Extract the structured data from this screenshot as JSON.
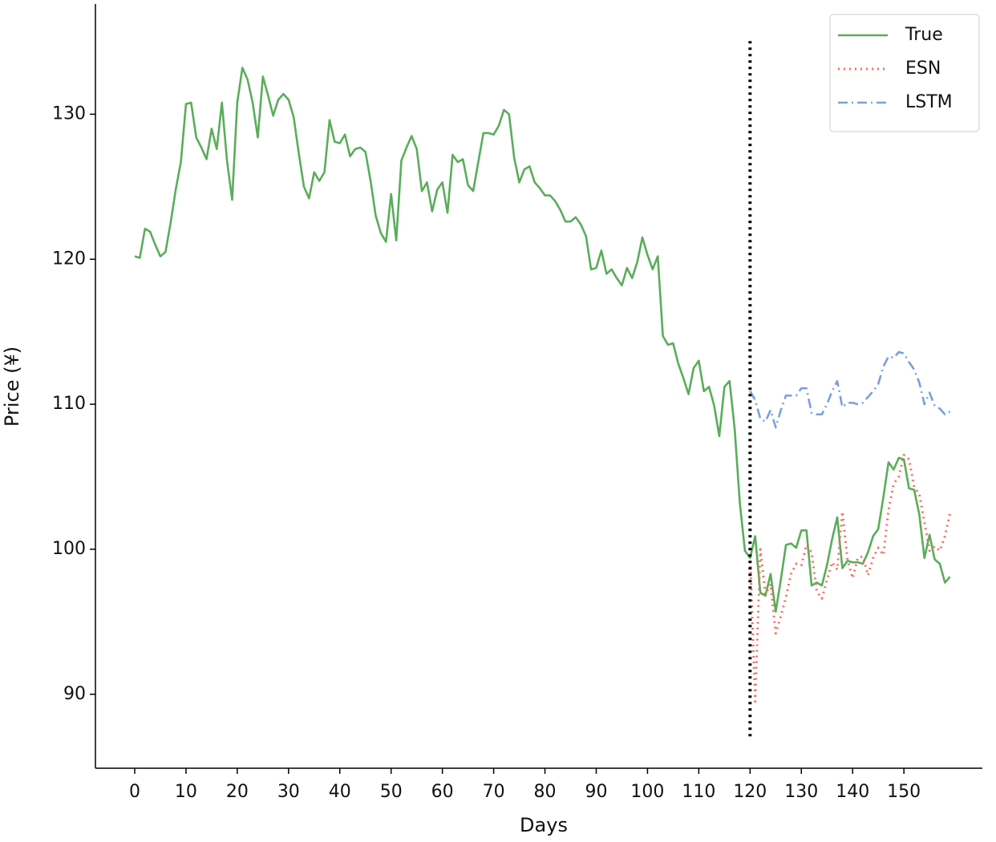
{
  "chart_data": {
    "type": "line",
    "x_label": "Days",
    "y_label": "Price (¥)",
    "x": [
      0,
      1,
      2,
      3,
      4,
      5,
      6,
      7,
      8,
      9,
      10,
      11,
      12,
      13,
      14,
      15,
      16,
      17,
      18,
      19,
      20,
      21,
      22,
      23,
      24,
      25,
      26,
      27,
      28,
      29,
      30,
      31,
      32,
      33,
      34,
      35,
      36,
      37,
      38,
      39,
      40,
      41,
      42,
      43,
      44,
      45,
      46,
      47,
      48,
      49,
      50,
      51,
      52,
      53,
      54,
      55,
      56,
      57,
      58,
      59,
      60,
      61,
      62,
      63,
      64,
      65,
      66,
      67,
      68,
      69,
      70,
      71,
      72,
      73,
      74,
      75,
      76,
      77,
      78,
      79,
      80,
      81,
      82,
      83,
      84,
      85,
      86,
      87,
      88,
      89,
      90,
      91,
      92,
      93,
      94,
      95,
      96,
      97,
      98,
      99,
      100,
      101,
      102,
      103,
      104,
      105,
      106,
      107,
      108,
      109,
      110,
      111,
      112,
      113,
      114,
      115,
      116,
      117,
      118,
      119,
      120,
      121,
      122,
      123,
      124,
      125,
      126,
      127,
      128,
      129,
      130,
      131,
      132,
      133,
      134,
      135,
      136,
      137,
      138,
      139,
      140,
      141,
      142,
      143,
      144,
      145,
      146,
      147,
      148,
      149,
      150,
      151,
      152,
      153,
      154,
      155,
      156,
      157,
      158,
      159
    ],
    "series": [
      {
        "name": "True",
        "color": "#5aad5a",
        "style": "solid",
        "values": [
          120.2,
          120.1,
          122.1,
          121.9,
          121.0,
          120.2,
          120.5,
          122.5,
          124.8,
          126.7,
          130.7,
          130.8,
          128.4,
          127.7,
          126.9,
          129.0,
          127.6,
          130.8,
          126.8,
          124.1,
          130.8,
          133.2,
          132.4,
          130.8,
          128.4,
          132.6,
          131.3,
          129.9,
          131.0,
          131.4,
          131.0,
          129.8,
          127.3,
          125.0,
          124.2,
          126.0,
          125.4,
          126.0,
          129.6,
          128.1,
          128.0,
          128.6,
          127.1,
          127.6,
          127.7,
          127.4,
          125.4,
          123.0,
          121.8,
          121.2,
          124.5,
          121.3,
          126.8,
          127.7,
          128.5,
          127.6,
          124.7,
          125.3,
          123.3,
          124.8,
          125.3,
          123.2,
          127.2,
          126.7,
          126.9,
          125.1,
          124.7,
          126.7,
          128.7,
          128.7,
          128.6,
          129.2,
          130.3,
          130.0,
          127.0,
          125.3,
          126.2,
          126.4,
          125.3,
          124.9,
          124.4,
          124.4,
          124.0,
          123.4,
          122.6,
          122.6,
          122.9,
          122.4,
          121.6,
          119.3,
          119.4,
          120.6,
          119.0,
          119.3,
          118.7,
          118.2,
          119.4,
          118.7,
          119.8,
          121.5,
          120.3,
          119.3,
          120.2,
          114.7,
          114.1,
          114.2,
          112.8,
          111.8,
          110.7,
          112.5,
          113.0,
          110.9,
          111.2,
          109.9,
          107.8,
          111.2,
          111.6,
          108.3,
          103.2,
          99.9,
          99.4,
          100.9,
          97.0,
          96.8,
          98.3,
          95.7,
          97.9,
          100.3,
          100.4,
          100.1,
          101.3,
          101.3,
          97.5,
          97.7,
          97.5,
          98.9,
          100.7,
          102.2,
          98.7,
          99.2,
          99.1,
          99.1,
          99.0,
          99.8,
          100.9,
          101.4,
          103.6,
          106.0,
          105.5,
          106.3,
          106.2,
          104.2,
          104.1,
          102.4,
          99.4,
          101.0,
          99.3,
          99.0,
          97.7,
          98.1
        ]
      },
      {
        "name": "ESN",
        "color": "#f07060",
        "style": "dotted",
        "values": [
          null,
          null,
          null,
          null,
          null,
          null,
          null,
          null,
          null,
          null,
          null,
          null,
          null,
          null,
          null,
          null,
          null,
          null,
          null,
          null,
          null,
          null,
          null,
          null,
          null,
          null,
          null,
          null,
          null,
          null,
          null,
          null,
          null,
          null,
          null,
          null,
          null,
          null,
          null,
          null,
          null,
          null,
          null,
          null,
          null,
          null,
          null,
          null,
          null,
          null,
          null,
          null,
          null,
          null,
          null,
          null,
          null,
          null,
          null,
          null,
          null,
          null,
          null,
          null,
          null,
          null,
          null,
          null,
          null,
          null,
          null,
          null,
          null,
          null,
          null,
          null,
          null,
          null,
          null,
          null,
          null,
          null,
          null,
          null,
          null,
          null,
          null,
          null,
          null,
          null,
          null,
          null,
          null,
          null,
          null,
          null,
          null,
          null,
          null,
          null,
          null,
          null,
          null,
          null,
          null,
          null,
          null,
          null,
          null,
          null,
          null,
          null,
          null,
          null,
          null,
          null,
          null,
          null,
          null,
          null,
          99.6,
          89.5,
          100.0,
          96.9,
          97.6,
          94.2,
          95.4,
          96.7,
          98.3,
          99.0,
          98.9,
          100.3,
          99.8,
          97.1,
          96.6,
          97.9,
          99.1,
          98.6,
          102.6,
          99.3,
          98.0,
          99.4,
          99.5,
          98.2,
          99.4,
          100.1,
          99.6,
          102.7,
          104.5,
          105.0,
          106.5,
          106.2,
          104.3,
          103.8,
          101.9,
          99.9,
          100.2,
          99.9,
          100.9,
          102.5
        ]
      },
      {
        "name": "LSTM",
        "color": "#7b9fdc",
        "style": "dashdot",
        "values": [
          null,
          null,
          null,
          null,
          null,
          null,
          null,
          null,
          null,
          null,
          null,
          null,
          null,
          null,
          null,
          null,
          null,
          null,
          null,
          null,
          null,
          null,
          null,
          null,
          null,
          null,
          null,
          null,
          null,
          null,
          null,
          null,
          null,
          null,
          null,
          null,
          null,
          null,
          null,
          null,
          null,
          null,
          null,
          null,
          null,
          null,
          null,
          null,
          null,
          null,
          null,
          null,
          null,
          null,
          null,
          null,
          null,
          null,
          null,
          null,
          null,
          null,
          null,
          null,
          null,
          null,
          null,
          null,
          null,
          null,
          null,
          null,
          null,
          null,
          null,
          null,
          null,
          null,
          null,
          null,
          null,
          null,
          null,
          null,
          null,
          null,
          null,
          null,
          null,
          null,
          null,
          null,
          null,
          null,
          null,
          null,
          null,
          null,
          null,
          null,
          null,
          null,
          null,
          null,
          null,
          null,
          null,
          null,
          null,
          null,
          null,
          null,
          null,
          null,
          null,
          null,
          null,
          null,
          null,
          null,
          110.9,
          110.3,
          109.0,
          108.8,
          109.6,
          108.4,
          109.6,
          110.6,
          110.6,
          110.6,
          111.1,
          111.1,
          109.4,
          109.3,
          109.3,
          110.0,
          110.9,
          111.6,
          109.8,
          110.1,
          110.1,
          110.0,
          110.1,
          110.5,
          110.9,
          111.4,
          112.6,
          113.3,
          113.2,
          113.6,
          113.5,
          112.9,
          112.4,
          111.5,
          110.0,
          110.8,
          109.9,
          109.7,
          109.3,
          109.5
        ]
      }
    ],
    "vline": {
      "x": 120,
      "ymin": 87.1,
      "ymax": 135.2,
      "color": "#000000"
    },
    "xlim": [
      -7.66,
      165.3
    ],
    "xticks": [
      0,
      10,
      20,
      30,
      40,
      50,
      60,
      70,
      80,
      90,
      100,
      110,
      120,
      130,
      140,
      150
    ],
    "ylim": [
      84.9,
      137.6
    ],
    "yticks": [
      90,
      100,
      110,
      120,
      130
    ],
    "grid": false,
    "legend": "upper right"
  }
}
